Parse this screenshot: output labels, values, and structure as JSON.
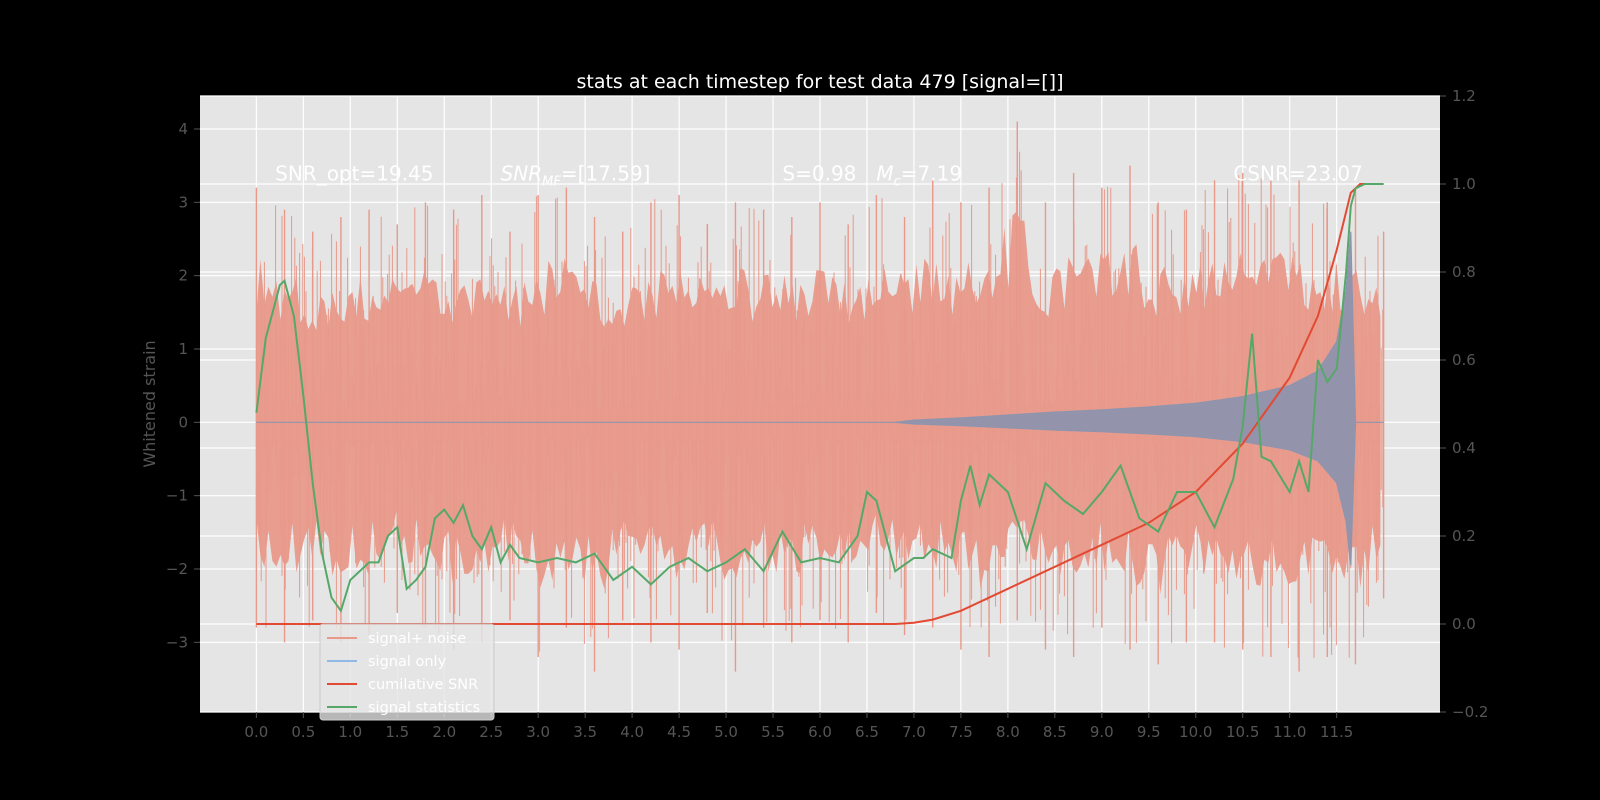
{
  "chart_data": {
    "type": "line",
    "title": "stats at each timestep for test data 479 [signal=[]]",
    "ylabel": "Whitened strain",
    "xlim": [
      -0.6,
      12.6
    ],
    "ylim": [
      -3.95,
      4.45
    ],
    "y2lim": [
      -0.2,
      1.2
    ],
    "x_ticks": [
      0.0,
      0.5,
      1.0,
      1.5,
      2.0,
      2.5,
      3.0,
      3.5,
      4.0,
      4.5,
      5.0,
      5.5,
      6.0,
      6.5,
      7.0,
      7.5,
      8.0,
      8.5,
      9.0,
      9.5,
      10.0,
      10.5,
      11.0,
      11.5
    ],
    "x_tick_labels": [
      "0.0",
      "0.5",
      "1.0",
      "1.5",
      "2.0",
      "2.5",
      "3.0",
      "3.5",
      "4.0",
      "4.5",
      "5.0",
      "5.5",
      "6.0",
      "6.5",
      "7.0",
      "7.5",
      "8.0",
      "8.5",
      "9.0",
      "9.5",
      "10.0",
      "10.5",
      "11.0",
      "11.5"
    ],
    "y_ticks": [
      -3,
      -2,
      -1,
      0,
      1,
      2,
      3,
      4
    ],
    "y_tick_labels": [
      "−3",
      "−2",
      "−1",
      "0",
      "1",
      "2",
      "3",
      "4"
    ],
    "y2_ticks": [
      -0.2,
      0.0,
      0.2,
      0.4,
      0.6,
      0.8,
      1.0,
      1.2
    ],
    "y2_tick_labels": [
      "−0.2",
      "0.0",
      "0.2",
      "0.4",
      "0.6",
      "0.8",
      "1.0",
      "1.2"
    ],
    "grid": true,
    "legend_position": "lower-left",
    "annotations": [
      {
        "text": "SNR_opt=19.45",
        "x": 0.2,
        "y": 3.3
      },
      {
        "text": "SNR_MF=[17.59]",
        "x": 2.6,
        "y": 3.3
      },
      {
        "text": "S=0.98",
        "x": 5.6,
        "y": 3.3
      },
      {
        "text": "M_c=7.19",
        "x": 6.6,
        "y": 3.3
      },
      {
        "text": "CSNR=23.07",
        "x": 10.4,
        "y": 3.3
      }
    ],
    "series": [
      {
        "name": "signal+ noise",
        "color": "#E24A33",
        "axis": "left",
        "x": [
          0.0,
          0.3,
          0.6,
          0.9,
          1.2,
          1.5,
          1.8,
          2.1,
          2.4,
          2.7,
          3.0,
          3.3,
          3.6,
          3.9,
          4.2,
          4.5,
          4.8,
          5.1,
          5.4,
          5.7,
          6.0,
          6.3,
          6.6,
          6.9,
          7.2,
          7.5,
          7.8,
          8.1,
          8.4,
          8.7,
          9.0,
          9.3,
          9.6,
          9.9,
          10.2,
          10.5,
          10.8,
          11.1,
          11.4,
          11.7,
          12.0
        ],
        "upper": [
          3.2,
          2.9,
          2.6,
          2.8,
          2.9,
          2.7,
          3.0,
          2.9,
          3.1,
          2.6,
          3.1,
          3.2,
          2.8,
          2.6,
          3.0,
          3.1,
          2.7,
          3.0,
          2.9,
          2.8,
          3.0,
          2.7,
          3.1,
          2.8,
          3.3,
          3.0,
          3.2,
          4.1,
          3.0,
          3.4,
          3.2,
          3.5,
          3.0,
          2.9,
          3.3,
          3.4,
          3.3,
          3.3,
          3.0,
          3.2,
          2.6
        ],
        "lower": [
          -2.8,
          -3.0,
          -2.7,
          -3.0,
          -2.9,
          -2.6,
          -2.8,
          -3.1,
          -3.0,
          -2.7,
          -3.2,
          -2.8,
          -3.4,
          -2.7,
          -3.0,
          -3.1,
          -2.6,
          -3.4,
          -2.8,
          -3.0,
          -2.7,
          -3.0,
          -2.6,
          -2.9,
          -2.8,
          -3.1,
          -3.2,
          -2.7,
          -3.1,
          -3.2,
          -2.8,
          -3.1,
          -3.3,
          -3.0,
          -3.0,
          -3.1,
          -3.2,
          -3.4,
          -3.2,
          -3.3,
          -2.4
        ]
      },
      {
        "name": "signal only",
        "color": "#8EBAE5",
        "axis": "left",
        "x": [
          0.0,
          6.8,
          7.0,
          7.5,
          8.0,
          8.5,
          9.0,
          9.5,
          10.0,
          10.5,
          11.0,
          11.3,
          11.5,
          11.6,
          11.65,
          11.7,
          12.0
        ],
        "envelope": [
          0.0,
          0.0,
          0.03,
          0.06,
          0.1,
          0.14,
          0.17,
          0.21,
          0.26,
          0.35,
          0.5,
          0.7,
          1.1,
          1.8,
          2.6,
          0.0,
          0.0
        ]
      },
      {
        "name": "cumilative SNR",
        "color": "#E24A33",
        "axis": "right",
        "x": [
          0.0,
          6.8,
          7.0,
          7.2,
          7.5,
          8.0,
          8.5,
          9.0,
          9.5,
          10.0,
          10.5,
          11.0,
          11.3,
          11.5,
          11.65,
          11.75,
          12.0
        ],
        "y": [
          0.0,
          0.0,
          0.003,
          0.01,
          0.03,
          0.08,
          0.13,
          0.18,
          0.23,
          0.3,
          0.41,
          0.56,
          0.7,
          0.85,
          0.98,
          1.0,
          1.0
        ]
      },
      {
        "name": "signal statistics",
        "color": "#55A868",
        "axis": "right",
        "x": [
          0.0,
          0.1,
          0.2,
          0.25,
          0.3,
          0.4,
          0.5,
          0.6,
          0.7,
          0.8,
          0.9,
          1.0,
          1.2,
          1.3,
          1.4,
          1.5,
          1.6,
          1.7,
          1.8,
          1.9,
          2.0,
          2.1,
          2.2,
          2.3,
          2.4,
          2.5,
          2.6,
          2.7,
          2.8,
          3.0,
          3.2,
          3.4,
          3.6,
          3.8,
          4.0,
          4.2,
          4.4,
          4.6,
          4.8,
          5.0,
          5.2,
          5.4,
          5.6,
          5.8,
          6.0,
          6.2,
          6.4,
          6.5,
          6.6,
          6.8,
          7.0,
          7.1,
          7.2,
          7.4,
          7.5,
          7.6,
          7.7,
          7.8,
          8.0,
          8.2,
          8.4,
          8.6,
          8.8,
          9.0,
          9.2,
          9.4,
          9.6,
          9.8,
          10.0,
          10.2,
          10.4,
          10.5,
          10.6,
          10.7,
          10.8,
          11.0,
          11.1,
          11.2,
          11.3,
          11.4,
          11.5,
          11.6,
          11.65,
          11.7,
          11.8,
          12.0
        ],
        "y": [
          0.48,
          0.65,
          0.73,
          0.77,
          0.78,
          0.7,
          0.52,
          0.32,
          0.16,
          0.06,
          0.03,
          0.1,
          0.14,
          0.14,
          0.2,
          0.22,
          0.08,
          0.1,
          0.13,
          0.24,
          0.26,
          0.23,
          0.27,
          0.2,
          0.17,
          0.22,
          0.14,
          0.18,
          0.15,
          0.14,
          0.15,
          0.14,
          0.16,
          0.1,
          0.13,
          0.09,
          0.13,
          0.15,
          0.12,
          0.14,
          0.17,
          0.12,
          0.21,
          0.14,
          0.15,
          0.14,
          0.2,
          0.3,
          0.28,
          0.12,
          0.15,
          0.15,
          0.17,
          0.15,
          0.28,
          0.36,
          0.27,
          0.34,
          0.3,
          0.17,
          0.32,
          0.28,
          0.25,
          0.3,
          0.36,
          0.24,
          0.21,
          0.3,
          0.3,
          0.22,
          0.33,
          0.45,
          0.66,
          0.38,
          0.37,
          0.3,
          0.37,
          0.3,
          0.6,
          0.55,
          0.58,
          0.8,
          0.95,
          0.99,
          1.0,
          1.0
        ]
      }
    ]
  }
}
